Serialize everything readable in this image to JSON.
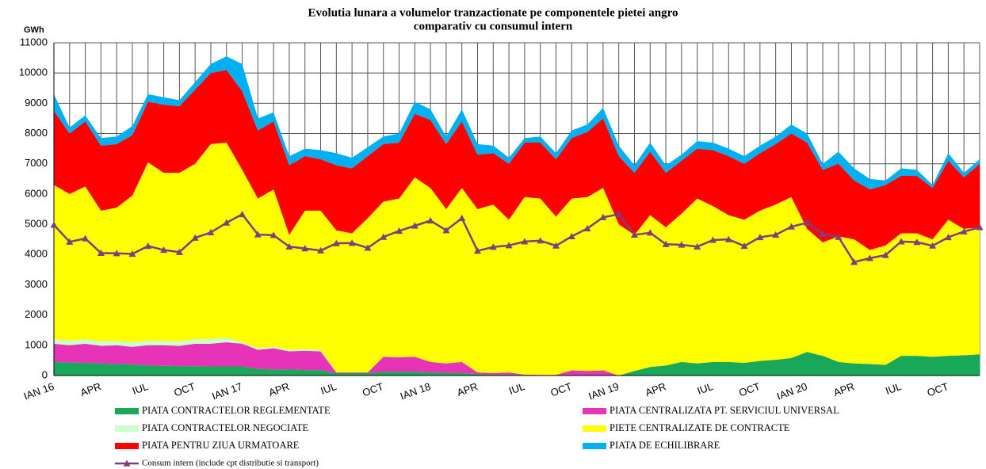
{
  "chart_data": {
    "type": "area",
    "stacked": true,
    "title": "Evolutia lunara a volumelor tranzactionate pe componentele pietei angro",
    "subtitle": "comparativ cu consumul intern",
    "y_label": "GWh",
    "grid": true,
    "ylim": [
      0,
      11000
    ],
    "yticks": [
      0,
      1000,
      2000,
      3000,
      4000,
      5000,
      6000,
      7000,
      8000,
      9000,
      10000,
      11000
    ],
    "categories": [
      "IAN 16",
      null,
      null,
      "APR",
      null,
      null,
      "IUL",
      null,
      null,
      "OCT",
      null,
      null,
      "IAN 17",
      null,
      null,
      "APR",
      null,
      null,
      "IUL",
      null,
      null,
      "OCT",
      null,
      null,
      "IAN 18",
      null,
      null,
      "APR",
      null,
      null,
      "IUL",
      null,
      null,
      "OCT",
      null,
      null,
      "IAN 19",
      null,
      null,
      "APR",
      null,
      null,
      "IUL",
      null,
      null,
      "OCT",
      null,
      null,
      "IAN 20",
      null,
      null,
      "APR",
      null,
      null,
      "IUL",
      null,
      null,
      "OCT",
      null,
      null
    ],
    "series": [
      {
        "name": "PIATA CONTRACTELOR REGLEMENTATE",
        "color": "#19a85a",
        "values": [
          450,
          430,
          420,
          400,
          380,
          370,
          330,
          320,
          310,
          310,
          300,
          300,
          300,
          220,
          200,
          200,
          180,
          180,
          80,
          80,
          80,
          120,
          120,
          120,
          100,
          90,
          80,
          50,
          30,
          30,
          20,
          10,
          10,
          10,
          10,
          10,
          0,
          150,
          280,
          330,
          450,
          400,
          450,
          450,
          420,
          480,
          520,
          580,
          780,
          650,
          450,
          400,
          380,
          350,
          650,
          650,
          620,
          650,
          670,
          700
        ]
      },
      {
        "name": "PIATA CENTRALIZATA PT. SERVICIUL UNIVERSAL",
        "color": "#e633b8",
        "values": [
          600,
          570,
          630,
          580,
          620,
          580,
          670,
          680,
          670,
          740,
          750,
          800,
          750,
          630,
          700,
          600,
          640,
          620,
          20,
          20,
          20,
          500,
          480,
          500,
          350,
          310,
          370,
          50,
          50,
          70,
          10,
          10,
          10,
          160,
          140,
          160,
          0,
          0,
          0,
          0,
          0,
          0,
          0,
          0,
          0,
          0,
          0,
          0,
          0,
          0,
          0,
          0,
          0,
          0,
          0,
          0,
          0,
          0,
          0,
          0
        ]
      },
      {
        "name": "PIATA CONTRACTELOR NEGOCIATE",
        "color": "#ccffcc",
        "values": [
          150,
          150,
          150,
          150,
          150,
          150,
          150,
          150,
          150,
          150,
          150,
          150,
          50,
          50,
          50,
          50,
          50,
          50,
          0,
          0,
          0,
          0,
          0,
          0,
          0,
          0,
          0,
          0,
          0,
          0,
          0,
          0,
          0,
          0,
          0,
          0,
          0,
          0,
          0,
          0,
          0,
          0,
          0,
          0,
          0,
          0,
          0,
          0,
          0,
          0,
          0,
          0,
          0,
          0,
          0,
          0,
          0,
          0,
          0,
          0
        ]
      },
      {
        "name": "PIETE CENTRALIZATE DE CONTRACTE",
        "color": "#ffff00",
        "values": [
          5100,
          4850,
          5050,
          4320,
          4400,
          4850,
          5900,
          5550,
          5570,
          5800,
          6450,
          6450,
          5700,
          4950,
          5200,
          3800,
          4580,
          4600,
          4700,
          4600,
          5100,
          5130,
          5250,
          5930,
          5750,
          5100,
          5750,
          5400,
          5570,
          5050,
          5870,
          5830,
          5230,
          5680,
          5750,
          6030,
          5000,
          4500,
          5020,
          4570,
          4900,
          5450,
          5150,
          4850,
          4730,
          4970,
          5130,
          5320,
          4070,
          3750,
          4150,
          4100,
          3770,
          3950,
          4050,
          4050,
          3880,
          4500,
          4180,
          4200
        ]
      },
      {
        "name": "PIATA PENTRU ZIUA URMATOARE",
        "color": "#ff0000",
        "values": [
          2450,
          2000,
          2150,
          2150,
          2100,
          2000,
          2000,
          2250,
          2200,
          2450,
          2350,
          2400,
          2600,
          2250,
          2250,
          2300,
          1800,
          1700,
          2150,
          2150,
          2050,
          1900,
          1850,
          2100,
          2250,
          2150,
          2200,
          1800,
          1700,
          1850,
          1800,
          1850,
          1900,
          2000,
          2150,
          2300,
          2250,
          2050,
          2100,
          1800,
          1750,
          1650,
          1850,
          1950,
          1850,
          1900,
          2000,
          2100,
          2850,
          2400,
          2400,
          1950,
          2000,
          2000,
          1900,
          1900,
          1700,
          1950,
          1700,
          2100
        ]
      },
      {
        "name": "PIATA DE ECHILIBRARE",
        "color": "#00b0f0",
        "values": [
          550,
          200,
          200,
          250,
          250,
          300,
          250,
          250,
          200,
          250,
          300,
          450,
          900,
          400,
          300,
          300,
          250,
          300,
          400,
          350,
          300,
          250,
          300,
          400,
          350,
          250,
          400,
          350,
          250,
          200,
          150,
          200,
          200,
          250,
          250,
          350,
          350,
          250,
          300,
          250,
          200,
          250,
          250,
          250,
          250,
          250,
          250,
          300,
          300,
          200,
          400,
          400,
          350,
          150,
          250,
          200,
          100,
          250,
          150,
          150
        ]
      }
    ],
    "line": {
      "name": "Consum intern (include cpt distributie si transport)",
      "color": "#7f3f7f",
      "marker": "triangle",
      "values": [
        4980,
        4420,
        4530,
        4050,
        4040,
        4020,
        4280,
        4150,
        4080,
        4550,
        4730,
        5050,
        5330,
        4660,
        4640,
        4260,
        4200,
        4130,
        4370,
        4380,
        4220,
        4580,
        4780,
        4950,
        5120,
        4800,
        5200,
        4120,
        4250,
        4300,
        4430,
        4460,
        4290,
        4600,
        4860,
        5230,
        5330,
        4650,
        4720,
        4340,
        4320,
        4260,
        4480,
        4500,
        4280,
        4570,
        4650,
        4920,
        5050,
        4680,
        4580,
        3750,
        3880,
        3980,
        4430,
        4410,
        4290,
        4570,
        4760,
        4900
      ]
    }
  }
}
